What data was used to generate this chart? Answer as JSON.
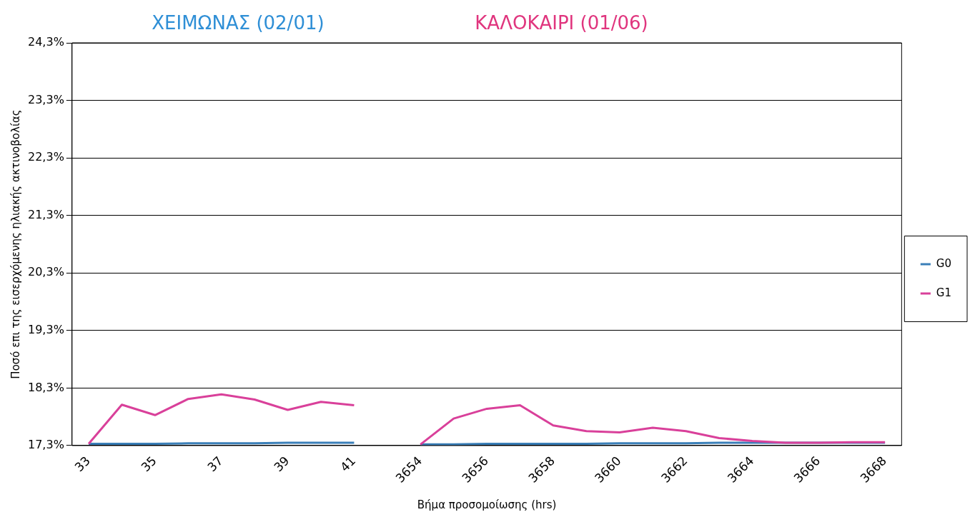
{
  "chart_data": {
    "type": "line",
    "annotations": [
      "ΧΕΙΜΩΝΑΣ (02/01)",
      "ΚΑΛΟΚΑΙΡΙ (01/06)"
    ],
    "xlabel": "Βήμα προσομοίωσης (hrs)",
    "ylabel": "Ποσό επι της εισερχόμενης ηλιακής ακτινοβολίας",
    "categories": [
      "33",
      null,
      "35",
      null,
      "37",
      null,
      "39",
      null,
      "41",
      null,
      "3654",
      null,
      "3656",
      null,
      "3658",
      null,
      "3660",
      null,
      "3662",
      null,
      "3664",
      null,
      "3666",
      null,
      "3668"
    ],
    "series": [
      {
        "name": "G0",
        "color": "#3a7fb8",
        "values": [
          17.33,
          17.33,
          17.33,
          17.34,
          17.34,
          17.34,
          17.35,
          17.35,
          17.35,
          null,
          17.32,
          17.32,
          17.33,
          17.33,
          17.33,
          17.33,
          17.34,
          17.34,
          17.34,
          17.35,
          17.35,
          17.35,
          17.35,
          17.35,
          17.35
        ]
      },
      {
        "name": "G1",
        "color": "#d9409a",
        "values": [
          17.33,
          18.01,
          17.83,
          18.11,
          18.19,
          18.1,
          17.92,
          18.06,
          18.0,
          null,
          17.32,
          17.77,
          17.94,
          18.0,
          17.65,
          17.55,
          17.53,
          17.61,
          17.55,
          17.43,
          17.38,
          17.35,
          17.35,
          17.36,
          17.36
        ]
      }
    ],
    "ylim": [
      17.3,
      24.3
    ],
    "yticks": [
      {
        "value": 17.3,
        "label": "17,3%"
      },
      {
        "value": 18.3,
        "label": "18,3%"
      },
      {
        "value": 19.3,
        "label": "19,3%"
      },
      {
        "value": 20.3,
        "label": "20,3%"
      },
      {
        "value": 21.3,
        "label": "21,3%"
      },
      {
        "value": 22.3,
        "label": "22,3%"
      },
      {
        "value": 23.3,
        "label": "23,3%"
      },
      {
        "value": 24.3,
        "label": "24,3%"
      }
    ],
    "grid": "y",
    "legend": "right",
    "marker": "none",
    "line_style": "solid"
  }
}
